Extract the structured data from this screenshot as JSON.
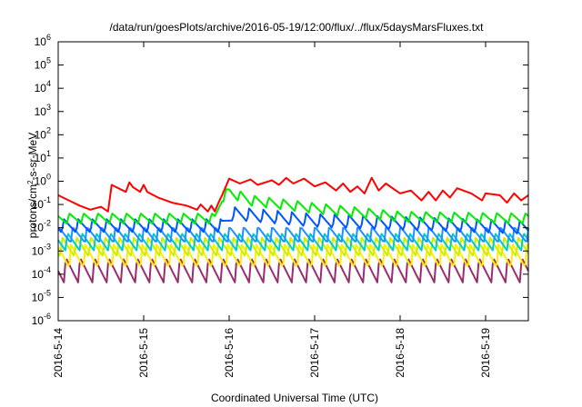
{
  "chart_data": {
    "type": "line",
    "title": "/data/run/goesPlots/archive/2016-05-19/12:00/flux/../flux/5daysMarsFluxes.txt",
    "xlabel": "Coordinated Universal Time (UTC)",
    "ylabel": {
      "prefix": "protons/cm",
      "sup": "2",
      "suffix": "-s-sr-MeV"
    },
    "yscale": "log",
    "ylim": [
      1e-06,
      1000000.0
    ],
    "y_ticks": [
      {
        "exp": "-6",
        "value": 1e-06
      },
      {
        "exp": "-5",
        "value": 1e-05
      },
      {
        "exp": "-4",
        "value": 0.0001
      },
      {
        "exp": "-3",
        "value": 0.001
      },
      {
        "exp": "-2",
        "value": 0.01
      },
      {
        "exp": "-1",
        "value": 0.1
      },
      {
        "exp": "0",
        "value": 1
      },
      {
        "exp": "1",
        "value": 10
      },
      {
        "exp": "2",
        "value": 100
      },
      {
        "exp": "3",
        "value": 1000
      },
      {
        "exp": "4",
        "value": 10000
      },
      {
        "exp": "5",
        "value": 100000
      },
      {
        "exp": "6",
        "value": 1000000
      }
    ],
    "y_tick_base": "10",
    "xlim": [
      "2016-05-14T00:00",
      "2016-05-19T12:00"
    ],
    "x_ticks": [
      {
        "label": "2016-5-14",
        "date": "2016-05-14T00:00"
      },
      {
        "label": "2016-5-15",
        "date": "2016-05-15T00:00"
      },
      {
        "label": "2016-5-16",
        "date": "2016-05-16T00:00"
      },
      {
        "label": "2016-5-17",
        "date": "2016-05-17T00:00"
      },
      {
        "label": "2016-5-18",
        "date": "2016-05-18T00:00"
      },
      {
        "label": "2016-5-19",
        "date": "2016-05-19T00:00"
      }
    ],
    "grid": false,
    "legend": "none",
    "series": [
      {
        "color": "#ff0000",
        "x": [
          "2016-05-14T00:00",
          "2016-05-14T03:00",
          "2016-05-14T06:00",
          "2016-05-14T09:00",
          "2016-05-14T12:00",
          "2016-05-14T14:00",
          "2016-05-14T15:00",
          "2016-05-14T19:00",
          "2016-05-14T20:00",
          "2016-05-14T21:00",
          "2016-05-14T23:00",
          "2016-05-15T00:00",
          "2016-05-15T01:00",
          "2016-05-15T04:00",
          "2016-05-15T08:00",
          "2016-05-15T12:00",
          "2016-05-15T15:00",
          "2016-05-15T16:00",
          "2016-05-15T18:00",
          "2016-05-15T19:00",
          "2016-05-15T20:00",
          "2016-05-15T21:00",
          "2016-05-15T22:00",
          "2016-05-16T00:00",
          "2016-05-16T03:00",
          "2016-05-16T06:00",
          "2016-05-16T08:00",
          "2016-05-16T12:00",
          "2016-05-16T14:00",
          "2016-05-16T16:00",
          "2016-05-16T18:00",
          "2016-05-16T21:00",
          "2016-05-17T00:00",
          "2016-05-17T03:00",
          "2016-05-17T06:00",
          "2016-05-17T08:00",
          "2016-05-17T10:00",
          "2016-05-17T12:00",
          "2016-05-17T14:00",
          "2016-05-17T16:00",
          "2016-05-17T18:00",
          "2016-05-17T20:00",
          "2016-05-18T00:00",
          "2016-05-18T03:00",
          "2016-05-18T06:00",
          "2016-05-18T08:00",
          "2016-05-18T10:00",
          "2016-05-18T12:00",
          "2016-05-18T14:00",
          "2016-05-18T16:00",
          "2016-05-18T20:00",
          "2016-05-18T23:00",
          "2016-05-19T00:00",
          "2016-05-19T04:00",
          "2016-05-19T06:00",
          "2016-05-19T08:00",
          "2016-05-19T10:00",
          "2016-05-19T12:00"
        ],
        "y": [
          0.25,
          0.15,
          0.09,
          0.06,
          0.08,
          0.05,
          0.7,
          0.35,
          0.9,
          0.55,
          0.35,
          0.7,
          0.35,
          0.2,
          0.12,
          0.09,
          0.06,
          0.1,
          0.05,
          0.09,
          0.05,
          0.12,
          0.25,
          1.3,
          0.8,
          1.2,
          0.7,
          1.1,
          0.7,
          1.4,
          0.8,
          1.3,
          0.6,
          0.9,
          0.4,
          0.8,
          0.35,
          0.6,
          0.3,
          1.4,
          0.4,
          0.8,
          0.3,
          0.4,
          0.15,
          0.35,
          0.15,
          0.4,
          0.2,
          0.5,
          0.3,
          0.15,
          0.3,
          0.25,
          0.12,
          0.3,
          0.15,
          0.25
        ]
      },
      {
        "color": "#00ee00",
        "x": [
          "2016-05-14T00:00",
          "2016-05-15T20:00",
          "2016-05-15T22:00",
          "2016-05-16T00:00",
          "2016-05-16T06:00",
          "2016-05-17T00:00",
          "2016-05-18T00:00",
          "2016-05-19T12:00"
        ],
        "y": [
          0.025,
          0.025,
          0.2,
          0.35,
          0.15,
          0.07,
          0.03,
          0.025
        ],
        "sawtooth": {
          "period_h": 4,
          "ratio": 3
        }
      },
      {
        "color": "#0055ff",
        "x": [
          "2016-05-14T00:00",
          "2016-05-15T22:00",
          "2016-05-16T01:00",
          "2016-05-17T00:00",
          "2016-05-19T12:00"
        ],
        "y": [
          0.012,
          0.012,
          0.04,
          0.02,
          0.01
        ],
        "sawtooth": {
          "period_h": 4,
          "ratio": 4
        }
      },
      {
        "color": "#1e90ff",
        "x": [
          "2016-05-14T00:00",
          "2016-05-19T12:00"
        ],
        "y": [
          0.005,
          0.005
        ],
        "sawtooth": {
          "period_h": 4,
          "ratio": 5
        }
      },
      {
        "color": "#00cccc",
        "x": [
          "2016-05-14T00:00",
          "2016-05-19T12:00"
        ],
        "y": [
          0.0025,
          0.0025
        ],
        "sawtooth": {
          "period_h": 4,
          "ratio": 6
        }
      },
      {
        "color": "#ccee00",
        "x": [
          "2016-05-14T00:00",
          "2016-05-19T12:00"
        ],
        "y": [
          0.0015,
          0.0015
        ],
        "sawtooth": {
          "period_h": 4,
          "ratio": 7
        }
      },
      {
        "color": "#ffee00",
        "x": [
          "2016-05-14T00:00",
          "2016-05-19T12:00"
        ],
        "y": [
          0.0006,
          0.0006
        ],
        "sawtooth": {
          "period_h": 4,
          "ratio": 10
        }
      },
      {
        "color": "#9b2d6e",
        "x": [
          "2016-05-14T00:00",
          "2016-05-19T12:00"
        ],
        "y": [
          0.00015,
          0.00015
        ],
        "sawtooth": {
          "period_h": 4,
          "ratio": 12
        }
      }
    ]
  }
}
